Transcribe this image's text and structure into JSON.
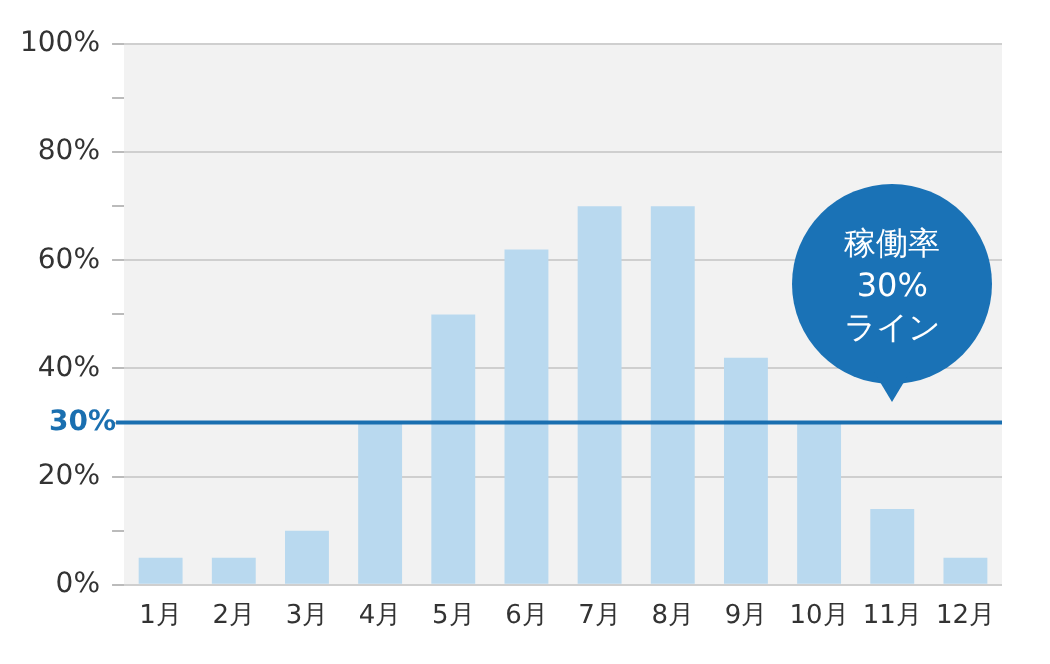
{
  "chart_data": {
    "type": "bar",
    "categories": [
      "1月",
      "2月",
      "3月",
      "4月",
      "5月",
      "6月",
      "7月",
      "8月",
      "9月",
      "10月",
      "11月",
      "12月"
    ],
    "values": [
      5,
      5,
      10,
      30,
      50,
      62,
      70,
      70,
      42,
      30,
      14,
      5
    ],
    "color": "#b9d9ef",
    "ylim": [
      0,
      100
    ],
    "yticks": [
      {
        "value": 0,
        "label": "0%"
      },
      {
        "value": 10,
        "label": null
      },
      {
        "value": 20,
        "label": "20%"
      },
      {
        "value": 30,
        "label": null
      },
      {
        "value": 40,
        "label": "40%"
      },
      {
        "value": 50,
        "label": null
      },
      {
        "value": 60,
        "label": "60%"
      },
      {
        "value": 70,
        "label": null
      },
      {
        "value": 80,
        "label": "80%"
      },
      {
        "value": 90,
        "label": null
      },
      {
        "value": 100,
        "label": "100%"
      }
    ],
    "grid": "y",
    "legend": false,
    "ref_lines": [
      {
        "axis": "y",
        "value": 30,
        "label": "30%",
        "color": "#1a6fb0"
      }
    ],
    "annotations": [
      {
        "text": "稼働率\n30%\nライン",
        "x": "11月",
        "y": 30
      }
    ]
  }
}
